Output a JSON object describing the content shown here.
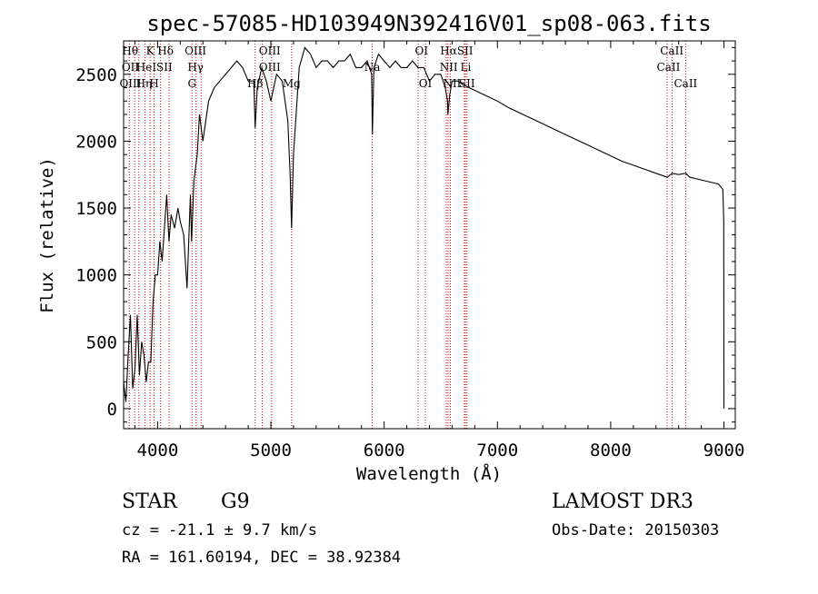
{
  "chart_data": {
    "type": "line",
    "title": "spec-57085-HD103949N392416V01_sp08-063.fits",
    "xlabel": "Wavelength (Å)",
    "ylabel": "Flux (relative)",
    "xlim": [
      3700,
      9100
    ],
    "ylim": [
      -150,
      2750
    ],
    "xticks": [
      "4000",
      "5000",
      "6000",
      "7000",
      "8000",
      "9000"
    ],
    "xtick_values": [
      4000,
      5000,
      6000,
      7000,
      8000,
      9000
    ],
    "yticks": [
      "0",
      "500",
      "1000",
      "1500",
      "2000",
      "2500"
    ],
    "ytick_values": [
      0,
      500,
      1000,
      1500,
      2000,
      2500
    ],
    "grid": false,
    "series": [
      {
        "x": [
          3700,
          3720,
          3740,
          3760,
          3780,
          3800,
          3820,
          3840,
          3860,
          3880,
          3900,
          3920,
          3940,
          3960,
          3980,
          4000,
          4020,
          4040,
          4060,
          4080,
          4100,
          4120,
          4150,
          4180,
          4200,
          4230,
          4260,
          4290,
          4300,
          4320,
          4350,
          4370,
          4400,
          4450,
          4500,
          4550,
          4600,
          4650,
          4700,
          4750,
          4800,
          4850,
          4861,
          4880,
          4920,
          4960,
          5000,
          5050,
          5100,
          5150,
          5170,
          5183,
          5200,
          5250,
          5300,
          5350,
          5400,
          5450,
          5500,
          5550,
          5600,
          5650,
          5700,
          5750,
          5800,
          5850,
          5890,
          5896,
          5910,
          5950,
          6000,
          6050,
          6100,
          6150,
          6200,
          6250,
          6300,
          6350,
          6400,
          6450,
          6500,
          6540,
          6560,
          6563,
          6580,
          6600,
          6650,
          6700,
          6750,
          6800,
          6900,
          7000,
          7100,
          7200,
          7300,
          7400,
          7500,
          7600,
          7700,
          7800,
          7900,
          8000,
          8100,
          8200,
          8300,
          8400,
          8500,
          8542,
          8600,
          8662,
          8700,
          8800,
          8900,
          8950,
          8990,
          8998,
          9000
        ],
        "values": [
          200,
          50,
          400,
          700,
          150,
          300,
          700,
          250,
          500,
          400,
          200,
          350,
          350,
          800,
          1000,
          1000,
          1250,
          1100,
          1350,
          1600,
          1250,
          1450,
          1350,
          1500,
          1400,
          1300,
          900,
          1600,
          1250,
          1700,
          1900,
          2200,
          2000,
          2300,
          2400,
          2450,
          2500,
          2550,
          2600,
          2550,
          2450,
          2450,
          2100,
          2400,
          2550,
          2450,
          2300,
          2500,
          2450,
          2150,
          1750,
          1350,
          1900,
          2550,
          2700,
          2650,
          2550,
          2600,
          2600,
          2550,
          2600,
          2600,
          2650,
          2550,
          2550,
          2600,
          2500,
          2050,
          2550,
          2650,
          2600,
          2550,
          2600,
          2550,
          2550,
          2600,
          2550,
          2550,
          2450,
          2500,
          2500,
          2400,
          2300,
          2200,
          2350,
          2450,
          2450,
          2420,
          2400,
          2380,
          2340,
          2300,
          2250,
          2210,
          2170,
          2130,
          2090,
          2050,
          2010,
          1970,
          1930,
          1890,
          1850,
          1820,
          1790,
          1760,
          1730,
          1760,
          1750,
          1760,
          1730,
          1710,
          1690,
          1680,
          1640,
          1400,
          0
        ]
      }
    ],
    "line_markers": [
      {
        "x": 3750
      },
      {
        "x": 3798
      },
      {
        "x": 3835
      },
      {
        "x": 3889
      },
      {
        "x": 3934
      },
      {
        "x": 3970
      },
      {
        "x": 4026
      },
      {
        "x": 4102
      },
      {
        "x": 4304
      },
      {
        "x": 4340
      },
      {
        "x": 4384
      },
      {
        "x": 4861
      },
      {
        "x": 4924
      },
      {
        "x": 5007
      },
      {
        "x": 5183
      },
      {
        "x": 5895
      },
      {
        "x": 6300
      },
      {
        "x": 6364
      },
      {
        "x": 6548
      },
      {
        "x": 6563
      },
      {
        "x": 6584
      },
      {
        "x": 6708
      },
      {
        "x": 6717
      },
      {
        "x": 6731
      },
      {
        "x": 8498
      },
      {
        "x": 8542
      },
      {
        "x": 8662
      }
    ],
    "line_labels": [
      {
        "text": "Hθ",
        "x": 3758,
        "row": 0
      },
      {
        "text": "K",
        "x": 3934,
        "row": 0
      },
      {
        "text": "Hδ",
        "x": 4070,
        "row": 0
      },
      {
        "text": "OIII",
        "x": 4335,
        "row": 0
      },
      {
        "text": "OIII",
        "x": 4990,
        "row": 0
      },
      {
        "text": "OI",
        "x": 6330,
        "row": 0
      },
      {
        "text": "HαSII",
        "x": 6640,
        "row": 0
      },
      {
        "text": "CaII",
        "x": 8540,
        "row": 0
      },
      {
        "text": "OII",
        "x": 3760,
        "row": 1
      },
      {
        "text": "HeI",
        "x": 3900,
        "row": 1
      },
      {
        "text": "SII",
        "x": 4060,
        "row": 1
      },
      {
        "text": "Hγ",
        "x": 4335,
        "row": 1
      },
      {
        "text": "OIII",
        "x": 4990,
        "row": 1
      },
      {
        "text": "Na",
        "x": 5895,
        "row": 1
      },
      {
        "text": "NII",
        "x": 6570,
        "row": 1
      },
      {
        "text": "Li",
        "x": 6720,
        "row": 1
      },
      {
        "text": "CaII",
        "x": 8510,
        "row": 1
      },
      {
        "text": "OIII",
        "x": 3760,
        "row": 2
      },
      {
        "text": "Hη",
        "x": 3880,
        "row": 2
      },
      {
        "text": "H",
        "x": 3970,
        "row": 2
      },
      {
        "text": "G",
        "x": 4304,
        "row": 2
      },
      {
        "text": "Hβ",
        "x": 4861,
        "row": 2
      },
      {
        "text": "Mg",
        "x": 5183,
        "row": 2
      },
      {
        "text": "OI",
        "x": 6364,
        "row": 2
      },
      {
        "text": "NII",
        "x": 6600,
        "row": 2
      },
      {
        "text": "SII",
        "x": 6731,
        "row": 2
      },
      {
        "text": "CaII",
        "x": 8662,
        "row": 2
      }
    ]
  },
  "info": {
    "object_class": "STAR",
    "subclass": "G9",
    "survey": "LAMOST DR3",
    "cz": "cz = -21.1 ± 9.7 km/s",
    "obs_date": "Obs-Date: 20150303",
    "coords": "RA = 161.60194, DEC =  38.92384"
  },
  "colors": {
    "spectrum": "#000000",
    "marker": "#cc0000",
    "axes": "#000000"
  }
}
